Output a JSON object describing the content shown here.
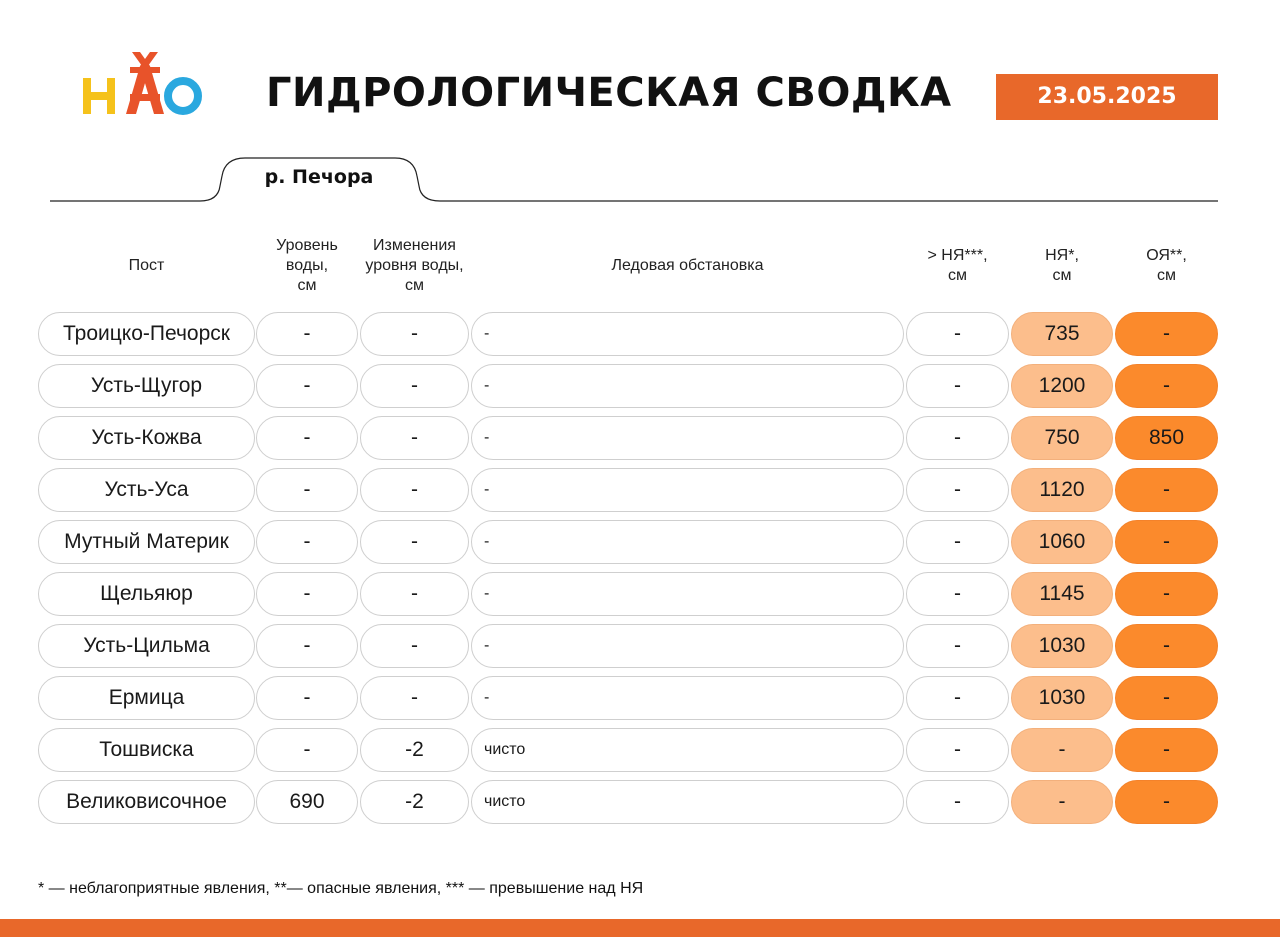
{
  "header": {
    "logo_text": "НАО",
    "title": "ГИДРОЛОГИЧЕСКАЯ СВОДКА",
    "date": "23.05.2025"
  },
  "river": "р. Печора",
  "columns": {
    "post": "Пост",
    "level": "Уровень\nводы,\nсм",
    "change": "Изменения\nуровня воды,\nсм",
    "ice": "Ледовая обстановка",
    "over": "> НЯ***,\nсм",
    "nya": "НЯ*,\nсм",
    "oya": "ОЯ**,\nсм"
  },
  "rows": [
    {
      "post": "Троицко-Печорск",
      "level": "-",
      "change": "-",
      "ice": "-",
      "over": "-",
      "nya": "735",
      "oya": "-"
    },
    {
      "post": "Усть-Щугор",
      "level": "-",
      "change": "-",
      "ice": "-",
      "over": "-",
      "nya": "1200",
      "oya": "-"
    },
    {
      "post": "Усть-Кожва",
      "level": "-",
      "change": "-",
      "ice": "-",
      "over": "-",
      "nya": "750",
      "oya": "850"
    },
    {
      "post": "Усть-Уса",
      "level": "-",
      "change": "-",
      "ice": "-",
      "over": "-",
      "nya": "1120",
      "oya": "-"
    },
    {
      "post": "Мутный Материк",
      "level": "-",
      "change": "-",
      "ice": "-",
      "over": "-",
      "nya": "1060",
      "oya": "-"
    },
    {
      "post": "Щельяюр",
      "level": "-",
      "change": "-",
      "ice": "-",
      "over": "-",
      "nya": "1145",
      "oya": "-"
    },
    {
      "post": "Усть-Цильма",
      "level": "-",
      "change": "-",
      "ice": "-",
      "over": "-",
      "nya": "1030",
      "oya": "-"
    },
    {
      "post": "Ермица",
      "level": "-",
      "change": "-",
      "ice": "-",
      "over": "-",
      "nya": "1030",
      "oya": "-"
    },
    {
      "post": "Тошвиска",
      "level": "-",
      "change": "-2",
      "ice": "чисто",
      "over": "-",
      "nya": "-",
      "oya": "-"
    },
    {
      "post": "Великовисочное",
      "level": "690",
      "change": "-2",
      "ice": "чисто",
      "over": "-",
      "nya": "-",
      "oya": "-"
    }
  ],
  "footnote": "* — неблагоприятные явления, **— опасные явления, *** — превышение над НЯ",
  "colors": {
    "accent": "#e8682a",
    "nya_fill": "#fcbe8c",
    "oya_fill": "#fb8a2c",
    "logo_yellow": "#f5c21b",
    "logo_red": "#e8532a",
    "logo_blue": "#2aa8df"
  }
}
